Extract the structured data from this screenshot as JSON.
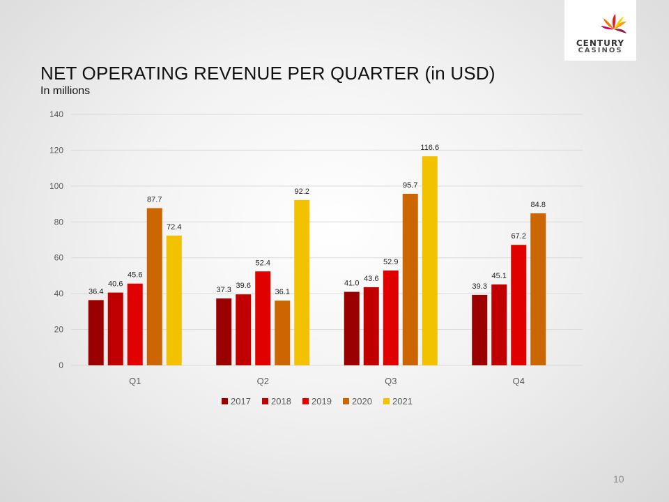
{
  "slide": {
    "title": "NET OPERATING REVENUE PER QUARTER (in USD)",
    "subtitle": "In millions",
    "page_number": "10"
  },
  "logo": {
    "brand_top": "CENTURY",
    "brand_bottom": "CASINOS"
  },
  "chart_data": {
    "type": "bar",
    "title": "NET OPERATING REVENUE PER QUARTER (in USD)",
    "ylabel": "In millions",
    "categories": [
      "Q1",
      "Q2",
      "Q3",
      "Q4"
    ],
    "ylim": [
      0,
      140
    ],
    "yticks": [
      "0",
      "20",
      "40",
      "60",
      "80",
      "100",
      "120",
      "140"
    ],
    "grid": true,
    "legend_position": "bottom",
    "series": [
      {
        "name": "2017",
        "color": "#9b0000",
        "values": [
          36.4,
          37.3,
          41.0,
          39.3
        ],
        "labels": [
          "36.4",
          "37.3",
          "41.0",
          "39.3"
        ]
      },
      {
        "name": "2018",
        "color": "#c00000",
        "values": [
          40.6,
          39.6,
          43.6,
          45.1
        ],
        "labels": [
          "40.6",
          "39.6",
          "43.6",
          "45.1"
        ]
      },
      {
        "name": "2019",
        "color": "#e00000",
        "values": [
          45.6,
          52.4,
          52.9,
          67.2
        ],
        "labels": [
          "45.6",
          "52.4",
          "52.9",
          "67.2"
        ]
      },
      {
        "name": "2020",
        "color": "#cc6600",
        "values": [
          87.7,
          36.1,
          95.7,
          84.8
        ],
        "labels": [
          "87.7",
          "36.1",
          "95.7",
          "84.8"
        ]
      },
      {
        "name": "2021",
        "color": "#f2c200",
        "values": [
          72.4,
          92.2,
          116.6,
          null
        ],
        "labels": [
          "72.4",
          "92.2",
          "116.6",
          null
        ]
      }
    ]
  }
}
